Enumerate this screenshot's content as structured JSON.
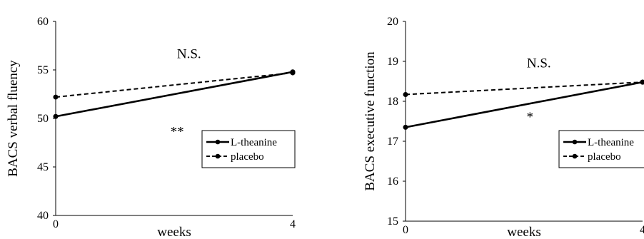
{
  "chart_data": [
    {
      "type": "line",
      "ylabel": "BACS verbal fluency",
      "xlabel": "weeks",
      "ylim": [
        40,
        60
      ],
      "yticks": [
        "40",
        "45",
        "50",
        "55",
        "60"
      ],
      "xticks": [
        "0",
        "4"
      ],
      "x": [
        0,
        4
      ],
      "series": [
        {
          "name": "L-theanine",
          "values": [
            50.2,
            54.8
          ],
          "style": "solid"
        },
        {
          "name": "placebo",
          "values": [
            52.2,
            54.7
          ],
          "style": "dashed"
        }
      ],
      "annotations": [
        {
          "text": "N.S.",
          "x": 2.25,
          "y": 56.2
        },
        {
          "text": "**",
          "x": 2.05,
          "y": 48.2
        }
      ],
      "legend_position": "right"
    },
    {
      "type": "line",
      "ylabel": "BACS executive function",
      "xlabel": "weeks",
      "ylim": [
        15,
        20
      ],
      "yticks": [
        "15",
        "16",
        "17",
        "18",
        "19",
        "20"
      ],
      "xticks": [
        "0",
        "4"
      ],
      "x": [
        0,
        4
      ],
      "series": [
        {
          "name": "L-theanine",
          "values": [
            17.35,
            18.48
          ],
          "style": "solid"
        },
        {
          "name": "placebo",
          "values": [
            18.17,
            18.48
          ],
          "style": "dashed"
        }
      ],
      "annotations": [
        {
          "text": "N.S.",
          "x": 2.25,
          "y": 18.85
        },
        {
          "text": "*",
          "x": 2.1,
          "y": 17.5
        }
      ],
      "legend_position": "right"
    }
  ]
}
